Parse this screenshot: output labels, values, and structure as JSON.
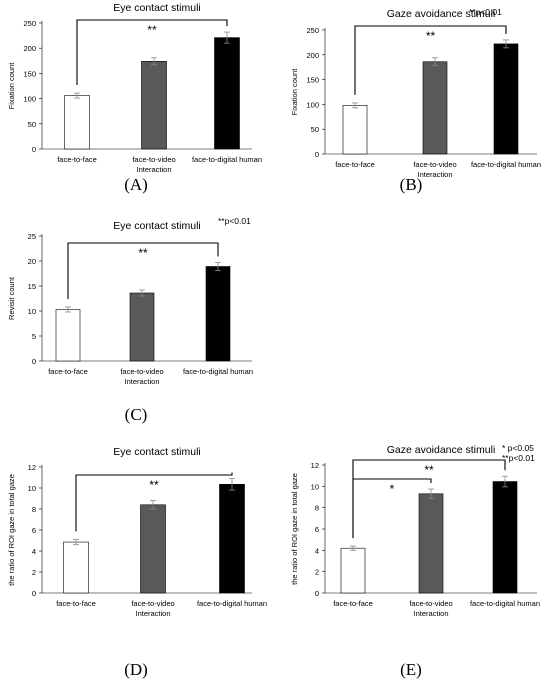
{
  "chart_data": [
    {
      "panel": "(A)",
      "type": "bar",
      "title": "Eye contact stimuli",
      "ylabel": "Fixation count",
      "xlabel": "Interaction",
      "categories": [
        "face-to-face",
        "face-to-video",
        "face-to-digital human"
      ],
      "values": [
        106,
        174,
        221
      ],
      "errors": [
        5,
        7,
        11
      ],
      "ylim": [
        0,
        250
      ],
      "yticks": [
        "0",
        "50",
        "100",
        "150",
        "200",
        "250"
      ],
      "bar_colors": [
        "#ffffff",
        "#595959",
        "#000000"
      ],
      "significance": [
        {
          "from": 0,
          "to": 2,
          "label": "**"
        }
      ],
      "note": ""
    },
    {
      "panel": "(B)",
      "type": "bar",
      "title": "Gaze avoidance stimuli",
      "ylabel": "Fixation count",
      "xlabel": "Interaction",
      "categories": [
        "face-to-face",
        "face-to-video",
        "face-to-digital human"
      ],
      "values": [
        98,
        186,
        222
      ],
      "errors": [
        5,
        8,
        8
      ],
      "ylim": [
        0,
        250
      ],
      "yticks": [
        "0",
        "50",
        "100",
        "150",
        "200",
        "250"
      ],
      "bar_colors": [
        "#ffffff",
        "#595959",
        "#000000"
      ],
      "significance": [
        {
          "from": 0,
          "to": 2,
          "label": "**"
        }
      ],
      "note": "**p<0.01"
    },
    {
      "panel": "(C)",
      "type": "bar",
      "title": "Eye contact stimuli",
      "ylabel": "Revisit count",
      "xlabel": "Interaction",
      "categories": [
        "face-to-face",
        "face-to-video",
        "face-to-digital human"
      ],
      "values": [
        10.3,
        13.6,
        18.9
      ],
      "errors": [
        0.5,
        0.6,
        0.8
      ],
      "ylim": [
        0,
        25
      ],
      "yticks": [
        "0",
        "5",
        "10",
        "15",
        "20",
        "25"
      ],
      "bar_colors": [
        "#ffffff",
        "#595959",
        "#000000"
      ],
      "significance": [
        {
          "from": 0,
          "to": 2,
          "label": "**"
        }
      ],
      "note": "**p<0.01"
    },
    {
      "panel": "(D)",
      "type": "bar",
      "title": "Eye contact stimuli",
      "ylabel": "the ratio of ROI gaze in total gaze",
      "xlabel": "Interaction",
      "categories": [
        "face-to-face",
        "face-to-video",
        "face-to-digital human"
      ],
      "values": [
        4.85,
        8.4,
        10.35
      ],
      "errors": [
        0.25,
        0.4,
        0.55
      ],
      "ylim": [
        0,
        12
      ],
      "yticks": [
        "0",
        "2",
        "4",
        "6",
        "8",
        "10",
        "12"
      ],
      "bar_colors": [
        "#ffffff",
        "#595959",
        "#000000"
      ],
      "significance": [
        {
          "from": 0,
          "to": 2,
          "label": "**"
        }
      ],
      "note": ""
    },
    {
      "panel": "(E)",
      "type": "bar",
      "title": "Gaze avoidance stimuli",
      "ylabel": "the ratio of ROI gaze in total gaze",
      "xlabel": "Interaction",
      "categories": [
        "face-to-face",
        "face-to-video",
        "face-to-digital human"
      ],
      "values": [
        4.2,
        9.3,
        10.45
      ],
      "errors": [
        0.2,
        0.45,
        0.5
      ],
      "ylim": [
        0,
        12
      ],
      "yticks": [
        "0",
        "2",
        "4",
        "6",
        "8",
        "10",
        "12"
      ],
      "bar_colors": [
        "#ffffff",
        "#595959",
        "#000000"
      ],
      "significance": [
        {
          "from": 0,
          "to": 2,
          "label": "**"
        },
        {
          "from": 0,
          "to": 1,
          "label": "*"
        }
      ],
      "note": "* p<0.05\n**p<0.01"
    }
  ]
}
